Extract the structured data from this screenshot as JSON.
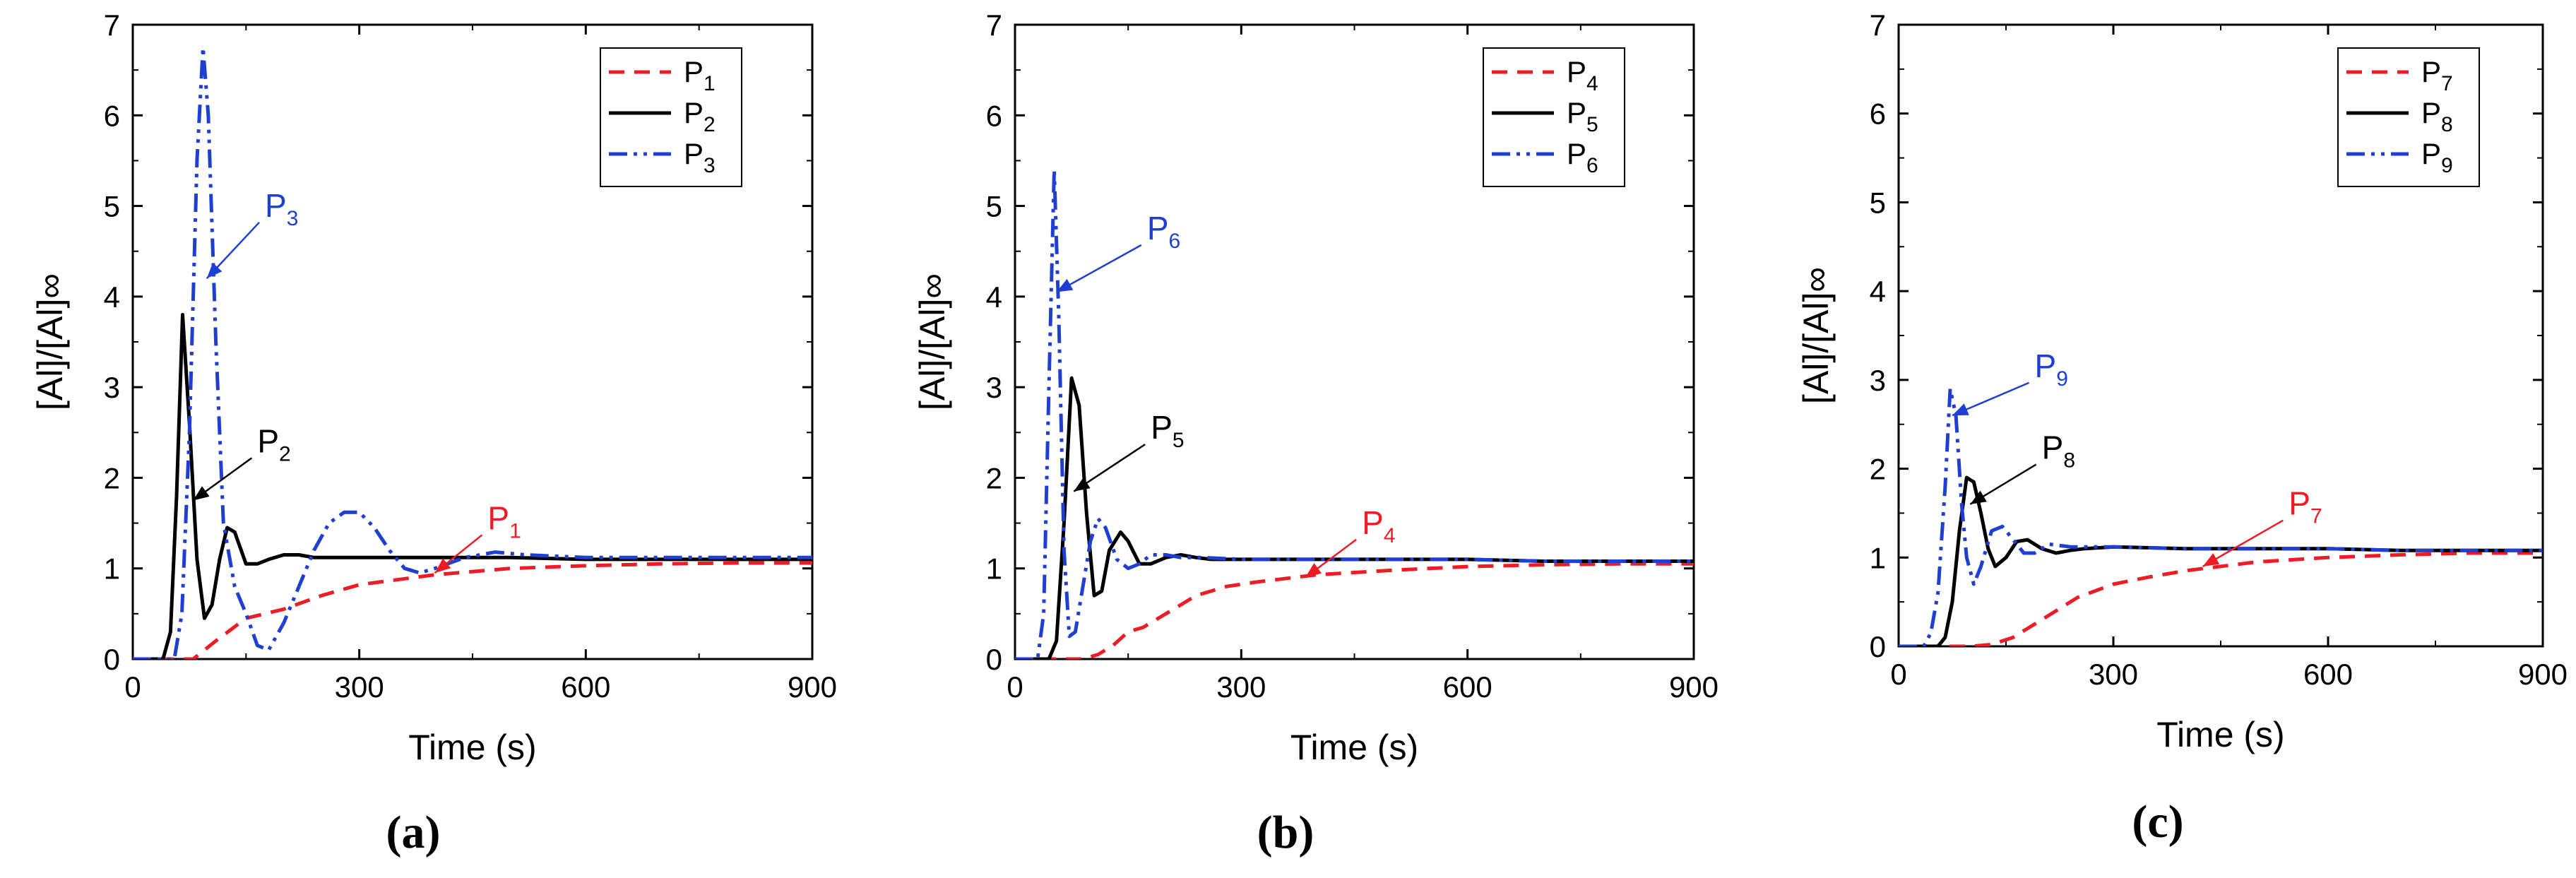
{
  "chart_data": [
    {
      "type": "line",
      "panel_label": "(a)",
      "xlabel": "Time (s)",
      "ylabel": "[Al]/[Al]∞",
      "xlim": [
        0,
        900
      ],
      "ylim": [
        0,
        7
      ],
      "xticks": [
        0,
        300,
        600,
        900
      ],
      "yticks": [
        0,
        1,
        2,
        3,
        4,
        5,
        6,
        7
      ],
      "legend_position": "top-right",
      "series": [
        {
          "name": "P1",
          "base": "P",
          "sub": "1",
          "color": "#ee1c25",
          "style": "dash",
          "x": [
            0,
            80,
            110,
            150,
            200,
            250,
            300,
            400,
            500,
            600,
            700,
            800,
            900
          ],
          "y": [
            0,
            0,
            0.2,
            0.45,
            0.55,
            0.7,
            0.82,
            0.93,
            1.0,
            1.03,
            1.05,
            1.06,
            1.06
          ]
        },
        {
          "name": "P2",
          "base": "P",
          "sub": "2",
          "color": "#000000",
          "style": "solid",
          "x": [
            0,
            40,
            50,
            58,
            66,
            75,
            85,
            95,
            105,
            115,
            125,
            135,
            150,
            165,
            180,
            200,
            220,
            240,
            260,
            300,
            400,
            500,
            600,
            700,
            800,
            900
          ],
          "y": [
            0,
            0,
            0.3,
            1.8,
            3.8,
            2.6,
            1.1,
            0.45,
            0.6,
            1.1,
            1.45,
            1.4,
            1.05,
            1.05,
            1.1,
            1.15,
            1.15,
            1.12,
            1.12,
            1.12,
            1.12,
            1.12,
            1.1,
            1.1,
            1.1,
            1.1
          ]
        },
        {
          "name": "P3",
          "base": "P",
          "sub": "3",
          "color": "#1f3fd2",
          "style": "dashdotdot",
          "x": [
            0,
            55,
            65,
            75,
            85,
            93,
            100,
            110,
            120,
            135,
            150,
            165,
            180,
            200,
            220,
            240,
            260,
            280,
            300,
            320,
            340,
            360,
            380,
            400,
            440,
            480,
            520,
            600,
            700,
            800,
            900
          ],
          "y": [
            0,
            0,
            0.5,
            2.5,
            5.5,
            6.75,
            6.0,
            3.5,
            1.5,
            0.8,
            0.5,
            0.15,
            0.1,
            0.4,
            0.8,
            1.2,
            1.5,
            1.62,
            1.62,
            1.45,
            1.2,
            1.0,
            0.95,
            1.0,
            1.12,
            1.18,
            1.15,
            1.12,
            1.12,
            1.12,
            1.12
          ]
        }
      ],
      "annotations": [
        {
          "label": "P3",
          "base": "P",
          "sub": "3",
          "color": "#1f3fd2",
          "at": [
            175,
            4.85
          ],
          "target": [
            98,
            4.2
          ]
        },
        {
          "label": "P2",
          "base": "P",
          "sub": "2",
          "color": "#000000",
          "at": [
            165,
            2.25
          ],
          "target": [
            80,
            1.75
          ]
        },
        {
          "label": "P1",
          "base": "P",
          "sub": "1",
          "color": "#ee1c25",
          "at": [
            470,
            1.4
          ],
          "target": [
            400,
            0.95
          ]
        }
      ]
    },
    {
      "type": "line",
      "panel_label": "(b)",
      "xlabel": "Time (s)",
      "ylabel": "[Al]/[Al]∞",
      "xlim": [
        0,
        900
      ],
      "ylim": [
        0,
        7
      ],
      "xticks": [
        0,
        300,
        600,
        900
      ],
      "yticks": [
        0,
        1,
        2,
        3,
        4,
        5,
        6,
        7
      ],
      "legend_position": "top-right",
      "series": [
        {
          "name": "P4",
          "base": "P",
          "sub": "4",
          "color": "#ee1c25",
          "style": "dash",
          "x": [
            0,
            90,
            110,
            130,
            150,
            170,
            200,
            240,
            280,
            320,
            400,
            500,
            600,
            700,
            800,
            900
          ],
          "y": [
            0,
            0,
            0.05,
            0.15,
            0.3,
            0.35,
            0.5,
            0.7,
            0.8,
            0.85,
            0.93,
            0.98,
            1.02,
            1.04,
            1.05,
            1.05
          ]
        },
        {
          "name": "P5",
          "base": "P",
          "sub": "5",
          "color": "#000000",
          "style": "solid",
          "x": [
            0,
            45,
            55,
            65,
            75,
            85,
            95,
            105,
            115,
            125,
            140,
            150,
            165,
            180,
            200,
            220,
            240,
            260,
            300,
            400,
            500,
            600,
            700,
            800,
            900
          ],
          "y": [
            0,
            0,
            0.2,
            1.5,
            3.1,
            2.8,
            1.6,
            0.7,
            0.75,
            1.2,
            1.4,
            1.3,
            1.05,
            1.05,
            1.12,
            1.15,
            1.12,
            1.1,
            1.1,
            1.1,
            1.1,
            1.1,
            1.08,
            1.08,
            1.08
          ]
        },
        {
          "name": "P6",
          "base": "P",
          "sub": "6",
          "color": "#1f3fd2",
          "style": "dashdotdot",
          "x": [
            0,
            30,
            38,
            45,
            52,
            58,
            65,
            72,
            80,
            90,
            100,
            110,
            120,
            135,
            150,
            165,
            180,
            200,
            220,
            250,
            300,
            400,
            500,
            600,
            700,
            800,
            900
          ],
          "y": [
            0,
            0,
            0.5,
            3.0,
            5.4,
            3.8,
            1.2,
            0.25,
            0.3,
            0.8,
            1.3,
            1.55,
            1.45,
            1.1,
            1.0,
            1.05,
            1.15,
            1.15,
            1.12,
            1.12,
            1.1,
            1.1,
            1.1,
            1.1,
            1.08,
            1.08,
            1.08
          ]
        }
      ],
      "annotations": [
        {
          "label": "P6",
          "base": "P",
          "sub": "6",
          "color": "#1f3fd2",
          "at": [
            175,
            4.6
          ],
          "target": [
            55,
            4.05
          ]
        },
        {
          "label": "P5",
          "base": "P",
          "sub": "5",
          "color": "#000000",
          "at": [
            180,
            2.4
          ],
          "target": [
            78,
            1.85
          ]
        },
        {
          "label": "P4",
          "base": "P",
          "sub": "4",
          "color": "#ee1c25",
          "at": [
            460,
            1.35
          ],
          "target": [
            385,
            0.9
          ]
        }
      ]
    },
    {
      "type": "line",
      "panel_label": "(c)",
      "xlabel": "Time (s)",
      "ylabel": "[Al]/[Al]∞",
      "xlim": [
        0,
        900
      ],
      "ylim": [
        0,
        7
      ],
      "xticks": [
        0,
        300,
        600,
        900
      ],
      "yticks": [
        0,
        1,
        2,
        3,
        4,
        5,
        6,
        7
      ],
      "legend_position": "top-right",
      "series": [
        {
          "name": "P7",
          "base": "P",
          "sub": "7",
          "color": "#ee1c25",
          "style": "dash",
          "x": [
            0,
            100,
            130,
            160,
            200,
            250,
            300,
            350,
            400,
            500,
            600,
            700,
            800,
            900
          ],
          "y": [
            0,
            0,
            0.02,
            0.1,
            0.3,
            0.55,
            0.7,
            0.78,
            0.85,
            0.95,
            1.0,
            1.03,
            1.05,
            1.05
          ]
        },
        {
          "name": "P8",
          "base": "P",
          "sub": "8",
          "color": "#000000",
          "style": "solid",
          "x": [
            0,
            55,
            65,
            75,
            85,
            95,
            105,
            115,
            125,
            135,
            150,
            165,
            180,
            200,
            220,
            240,
            260,
            300,
            400,
            500,
            600,
            700,
            800,
            900
          ],
          "y": [
            0,
            0,
            0.1,
            0.5,
            1.3,
            1.9,
            1.85,
            1.5,
            1.1,
            0.9,
            1.0,
            1.18,
            1.2,
            1.1,
            1.05,
            1.08,
            1.1,
            1.12,
            1.1,
            1.1,
            1.1,
            1.08,
            1.08,
            1.08
          ]
        },
        {
          "name": "P9",
          "base": "P",
          "sub": "9",
          "color": "#1f3fd2",
          "style": "dashdotdot",
          "x": [
            0,
            35,
            45,
            55,
            65,
            72,
            80,
            88,
            95,
            105,
            115,
            130,
            145,
            160,
            175,
            190,
            210,
            240,
            300,
            400,
            500,
            600,
            700,
            800,
            900
          ],
          "y": [
            0,
            0,
            0.15,
            0.6,
            1.8,
            2.9,
            2.6,
            1.6,
            1.0,
            0.7,
            0.9,
            1.3,
            1.35,
            1.2,
            1.05,
            1.05,
            1.15,
            1.12,
            1.12,
            1.1,
            1.1,
            1.1,
            1.08,
            1.08,
            1.08
          ]
        }
      ],
      "annotations": [
        {
          "label": "P9",
          "base": "P",
          "sub": "9",
          "color": "#1f3fd2",
          "at": [
            190,
            3.0
          ],
          "target": [
            75,
            2.6
          ]
        },
        {
          "label": "P8",
          "base": "P",
          "sub": "8",
          "color": "#000000",
          "at": [
            200,
            2.08
          ],
          "target": [
            100,
            1.6
          ]
        },
        {
          "label": "P7",
          "base": "P",
          "sub": "7",
          "color": "#ee1c25",
          "at": [
            545,
            1.45
          ],
          "target": [
            425,
            0.9
          ]
        }
      ]
    }
  ]
}
